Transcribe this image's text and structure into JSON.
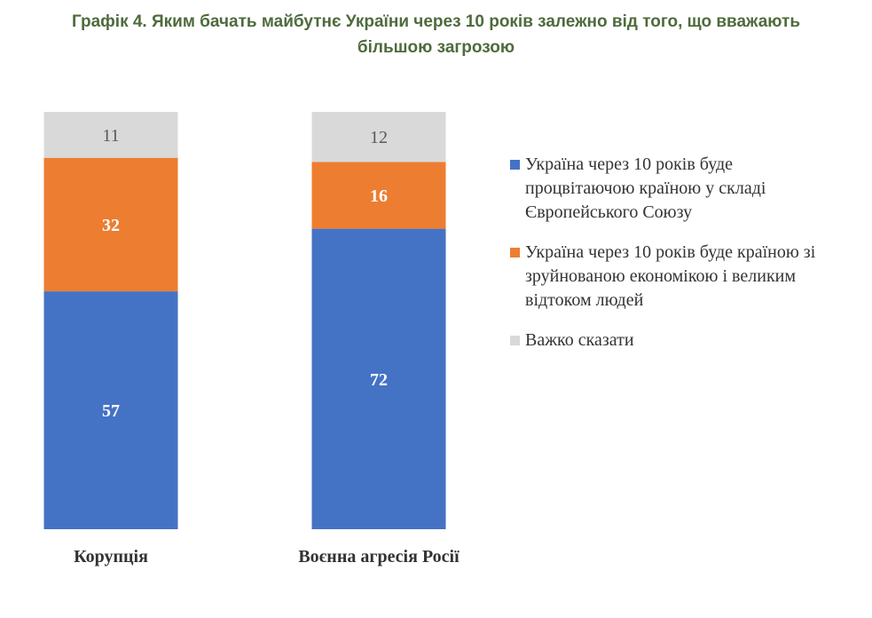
{
  "chart_data": {
    "type": "bar",
    "stacked": true,
    "title_lines": [
      "Графік 4. Яким бачать майбутнє України через 10 років залежно від того, що вважають",
      "більшою загрозою"
    ],
    "categories": [
      "Корупція",
      "Воєнна агресія Росії"
    ],
    "series": [
      {
        "name": "Україна через 10 років буде процвітаючою країною у складі Європейського Союзу",
        "color": "#4472c4",
        "label_color": "#ffffff",
        "values": [
          57,
          72
        ]
      },
      {
        "name": "Україна через 10 років буде країною зі зруйнованою економікою і великим відтоком людей",
        "color": "#ed7d31",
        "label_color": "#ffffff",
        "values": [
          32,
          16
        ]
      },
      {
        "name": "Важко сказати",
        "color": "#d9d9d9",
        "label_color": "#595959",
        "values": [
          11,
          12
        ]
      }
    ],
    "legend_position": "right",
    "ylim": [
      0,
      100
    ]
  }
}
